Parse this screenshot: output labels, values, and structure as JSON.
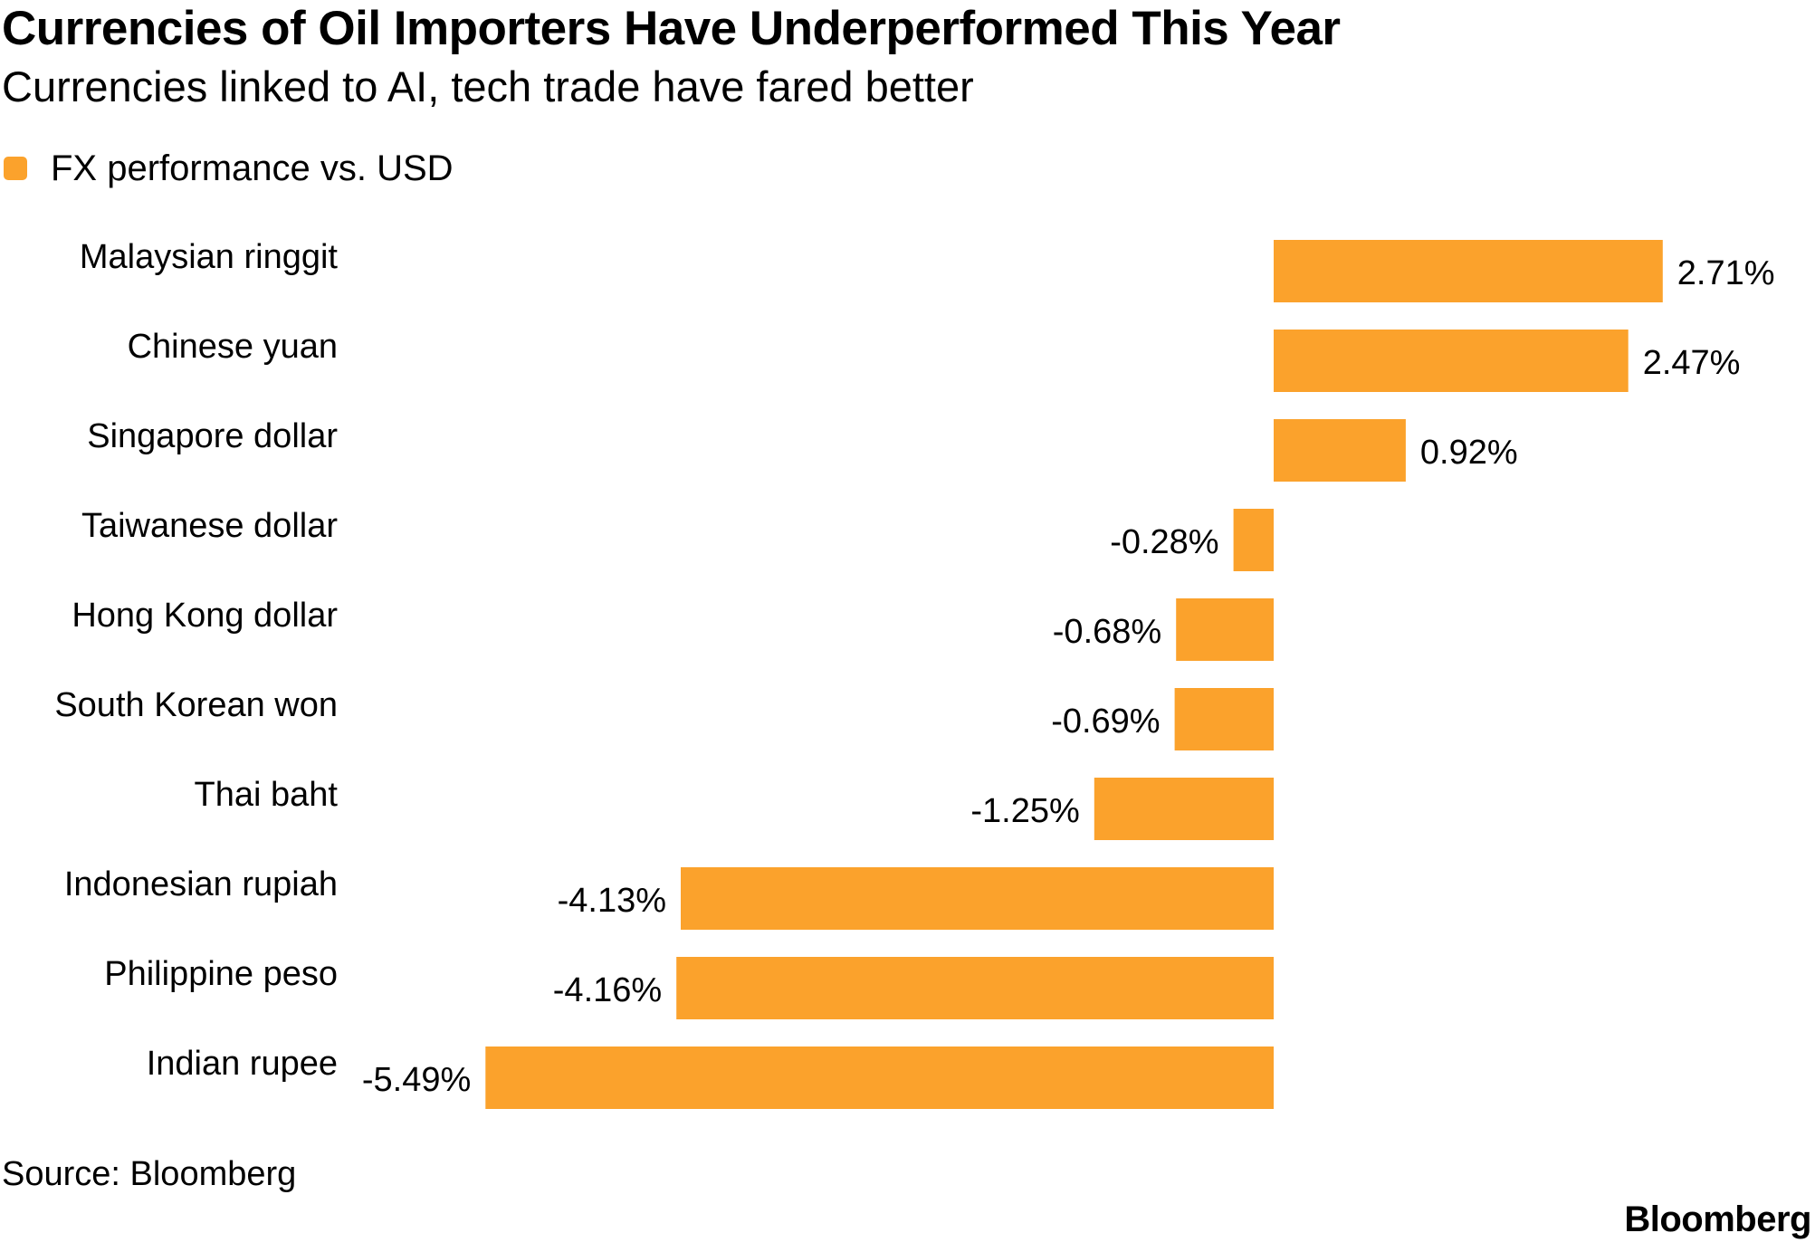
{
  "title": "Currencies of Oil Importers Have Underperformed This Year",
  "subtitle": "Currencies linked to AI, tech trade have fared better",
  "legend": {
    "label": "FX performance vs. USD",
    "color": "#FBA22C"
  },
  "chart_data": {
    "type": "bar",
    "orientation": "horizontal",
    "title": "Currencies of Oil Importers Have Underperformed This Year",
    "subtitle": "Currencies linked to AI, tech trade have fared better",
    "categories": [
      "Malaysian ringgit",
      "Chinese yuan",
      "Singapore dollar",
      "Taiwanese dollar",
      "Hong Kong dollar",
      "South Korean won",
      "Thai baht",
      "Indonesian rupiah",
      "Philippine peso",
      "Indian rupee"
    ],
    "series": [
      {
        "name": "FX performance vs. USD",
        "values": [
          2.71,
          2.47,
          0.92,
          -0.28,
          -0.68,
          -0.69,
          -1.25,
          -4.13,
          -4.16,
          -5.49
        ],
        "labels": [
          "2.71%",
          "2.47%",
          "0.92%",
          "-0.28%",
          "-0.68%",
          "-0.69%",
          "-1.25%",
          "-4.13%",
          "-4.16%",
          "-5.49%"
        ]
      }
    ],
    "xlim": [
      -5.49,
      2.71
    ],
    "grid": false,
    "legend_position": "top-left",
    "bar_color": "#FBA22C"
  },
  "source": "Source: Bloomberg",
  "brand": "Bloomberg"
}
